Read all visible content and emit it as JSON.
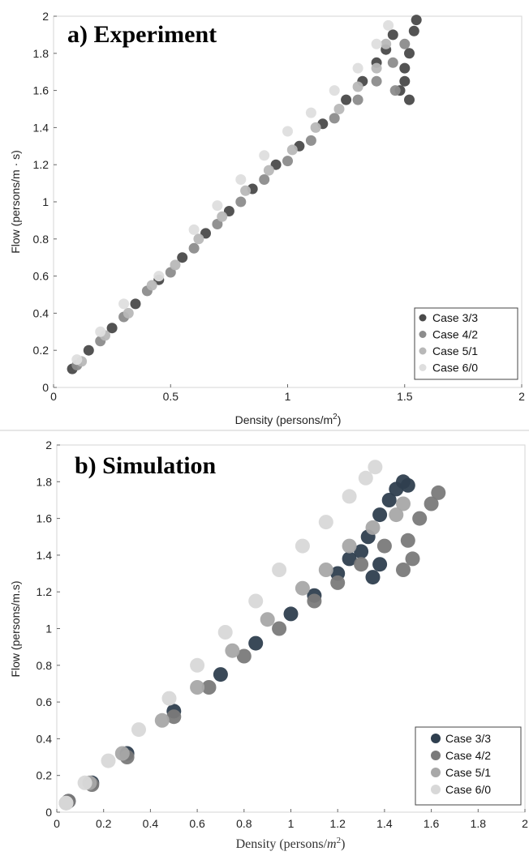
{
  "chart_data": [
    {
      "type": "scatter",
      "title": "a) Experiment",
      "xlabel": "Density (persons/m",
      "xlabel_sup": "2",
      "xlabel_end": ")",
      "ylabel": "Flow (persons/m · s)",
      "xlim": [
        0,
        2
      ],
      "ylim": [
        0,
        2
      ],
      "xticks": [
        "0",
        "0.5",
        "1",
        "1.5",
        "2"
      ],
      "xtick_values": [
        0,
        0.5,
        1,
        1.5,
        2
      ],
      "yticks": [
        "0",
        "0.2",
        "0.4",
        "0.6",
        "0.8",
        "1",
        "1.2",
        "1.4",
        "1.6",
        "1.8",
        "2"
      ],
      "ytick_values": [
        0,
        0.2,
        0.4,
        0.6,
        0.8,
        1,
        1.2,
        1.4,
        1.6,
        1.8,
        2
      ],
      "grid": false,
      "legend_position": "bottom-right",
      "series": [
        {
          "name": "Case 3/3",
          "color": "#4a4a4a",
          "points": [
            [
              0.08,
              0.1
            ],
            [
              0.15,
              0.2
            ],
            [
              0.25,
              0.32
            ],
            [
              0.35,
              0.45
            ],
            [
              0.45,
              0.58
            ],
            [
              0.55,
              0.7
            ],
            [
              0.65,
              0.83
            ],
            [
              0.75,
              0.95
            ],
            [
              0.85,
              1.07
            ],
            [
              0.95,
              1.2
            ],
            [
              1.05,
              1.3
            ],
            [
              1.15,
              1.42
            ],
            [
              1.25,
              1.55
            ],
            [
              1.32,
              1.65
            ],
            [
              1.38,
              1.75
            ],
            [
              1.42,
              1.82
            ],
            [
              1.45,
              1.9
            ],
            [
              1.48,
              1.6
            ],
            [
              1.5,
              1.72
            ],
            [
              1.52,
              1.8
            ],
            [
              1.54,
              1.92
            ],
            [
              1.55,
              1.98
            ],
            [
              1.52,
              1.55
            ],
            [
              1.5,
              1.65
            ]
          ]
        },
        {
          "name": "Case 4/2",
          "color": "#8c8c8c",
          "points": [
            [
              0.1,
              0.12
            ],
            [
              0.2,
              0.25
            ],
            [
              0.3,
              0.38
            ],
            [
              0.4,
              0.52
            ],
            [
              0.5,
              0.62
            ],
            [
              0.6,
              0.75
            ],
            [
              0.7,
              0.88
            ],
            [
              0.8,
              1.0
            ],
            [
              0.9,
              1.12
            ],
            [
              1.0,
              1.22
            ],
            [
              1.1,
              1.33
            ],
            [
              1.2,
              1.45
            ],
            [
              1.3,
              1.55
            ],
            [
              1.38,
              1.65
            ],
            [
              1.45,
              1.75
            ],
            [
              1.5,
              1.85
            ],
            [
              1.46,
              1.6
            ]
          ]
        },
        {
          "name": "Case 5/1",
          "color": "#b8b8b8",
          "points": [
            [
              0.12,
              0.14
            ],
            [
              0.22,
              0.28
            ],
            [
              0.32,
              0.4
            ],
            [
              0.42,
              0.55
            ],
            [
              0.52,
              0.66
            ],
            [
              0.62,
              0.8
            ],
            [
              0.72,
              0.92
            ],
            [
              0.82,
              1.06
            ],
            [
              0.92,
              1.17
            ],
            [
              1.02,
              1.28
            ],
            [
              1.12,
              1.4
            ],
            [
              1.22,
              1.5
            ],
            [
              1.3,
              1.62
            ],
            [
              1.38,
              1.72
            ],
            [
              1.42,
              1.85
            ]
          ]
        },
        {
          "name": "Case 6/0",
          "color": "#dedede",
          "points": [
            [
              0.1,
              0.15
            ],
            [
              0.2,
              0.3
            ],
            [
              0.3,
              0.45
            ],
            [
              0.45,
              0.6
            ],
            [
              0.6,
              0.85
            ],
            [
              0.7,
              0.98
            ],
            [
              0.8,
              1.12
            ],
            [
              0.9,
              1.25
            ],
            [
              1.0,
              1.38
            ],
            [
              1.1,
              1.48
            ],
            [
              1.2,
              1.6
            ],
            [
              1.3,
              1.72
            ],
            [
              1.38,
              1.85
            ],
            [
              1.43,
              1.95
            ]
          ]
        }
      ]
    },
    {
      "type": "scatter",
      "title": "b) Simulation",
      "xlabel": "Density (persons/",
      "xlabel_m": "m",
      "xlabel_sup": "2",
      "xlabel_end": ")",
      "ylabel": "Flow (persons/m.s)",
      "xlim": [
        0,
        2
      ],
      "ylim": [
        0,
        2
      ],
      "xticks": [
        "0",
        "0.2",
        "0.4",
        "0.6",
        "0.8",
        "1",
        "1.2",
        "1.4",
        "1.6",
        "1.8",
        "2"
      ],
      "xtick_values": [
        0,
        0.2,
        0.4,
        0.6,
        0.8,
        1,
        1.2,
        1.4,
        1.6,
        1.8,
        2
      ],
      "yticks": [
        "0",
        "0.2",
        "0.4",
        "0.6",
        "0.8",
        "1",
        "1.2",
        "1.4",
        "1.6",
        "1.8",
        "2"
      ],
      "ytick_values": [
        0,
        0.2,
        0.4,
        0.6,
        0.8,
        1,
        1.2,
        1.4,
        1.6,
        1.8,
        2
      ],
      "grid": false,
      "legend_position": "bottom-right",
      "series": [
        {
          "name": "Case 3/3",
          "color": "#2f3f4f",
          "points": [
            [
              0.05,
              0.06
            ],
            [
              0.15,
              0.16
            ],
            [
              0.3,
              0.32
            ],
            [
              0.5,
              0.55
            ],
            [
              0.7,
              0.75
            ],
            [
              0.85,
              0.92
            ],
            [
              1.0,
              1.08
            ],
            [
              1.1,
              1.18
            ],
            [
              1.2,
              1.3
            ],
            [
              1.25,
              1.38
            ],
            [
              1.3,
              1.42
            ],
            [
              1.33,
              1.5
            ],
            [
              1.38,
              1.62
            ],
            [
              1.42,
              1.7
            ],
            [
              1.45,
              1.76
            ],
            [
              1.48,
              1.8
            ],
            [
              1.5,
              1.78
            ],
            [
              1.35,
              1.28
            ],
            [
              1.38,
              1.35
            ]
          ]
        },
        {
          "name": "Case 4/2",
          "color": "#7a7a7a",
          "points": [
            [
              0.05,
              0.06
            ],
            [
              0.15,
              0.15
            ],
            [
              0.3,
              0.3
            ],
            [
              0.5,
              0.52
            ],
            [
              0.65,
              0.68
            ],
            [
              0.8,
              0.85
            ],
            [
              0.95,
              1.0
            ],
            [
              1.1,
              1.15
            ],
            [
              1.2,
              1.25
            ],
            [
              1.3,
              1.35
            ],
            [
              1.4,
              1.45
            ],
            [
              1.5,
              1.48
            ],
            [
              1.55,
              1.6
            ],
            [
              1.6,
              1.68
            ],
            [
              1.63,
              1.74
            ],
            [
              1.52,
              1.38
            ],
            [
              1.48,
              1.32
            ]
          ]
        },
        {
          "name": "Case 5/1",
          "color": "#a8a8a8",
          "points": [
            [
              0.04,
              0.05
            ],
            [
              0.14,
              0.16
            ],
            [
              0.28,
              0.32
            ],
            [
              0.45,
              0.5
            ],
            [
              0.6,
              0.68
            ],
            [
              0.75,
              0.88
            ],
            [
              0.9,
              1.05
            ],
            [
              1.05,
              1.22
            ],
            [
              1.15,
              1.32
            ],
            [
              1.25,
              1.45
            ],
            [
              1.35,
              1.55
            ],
            [
              1.45,
              1.62
            ],
            [
              1.48,
              1.68
            ]
          ]
        },
        {
          "name": "Case 6/0",
          "color": "#d8d8d8",
          "points": [
            [
              0.04,
              0.05
            ],
            [
              0.12,
              0.16
            ],
            [
              0.22,
              0.28
            ],
            [
              0.35,
              0.45
            ],
            [
              0.48,
              0.62
            ],
            [
              0.6,
              0.8
            ],
            [
              0.72,
              0.98
            ],
            [
              0.85,
              1.15
            ],
            [
              0.95,
              1.32
            ],
            [
              1.05,
              1.45
            ],
            [
              1.15,
              1.58
            ],
            [
              1.25,
              1.72
            ],
            [
              1.32,
              1.82
            ],
            [
              1.36,
              1.88
            ]
          ]
        }
      ]
    }
  ]
}
